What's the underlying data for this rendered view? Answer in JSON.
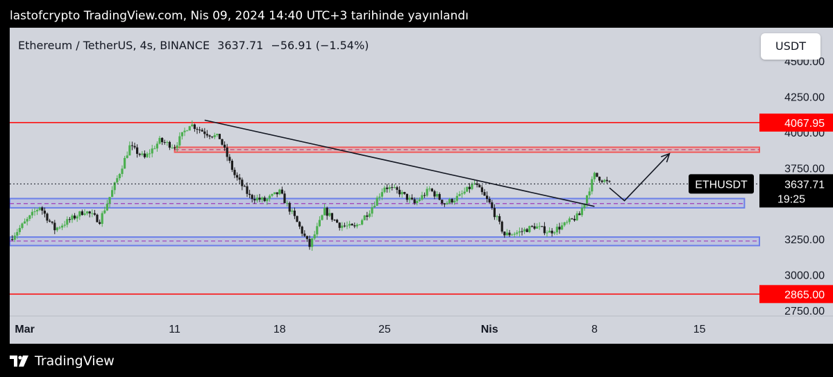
{
  "header": {
    "publish_line": "lastofcrypto TradingView.com, Nis 09, 2024 14:40 UTC+3 tarihinde yayınlandı"
  },
  "legend": {
    "symbol": "Ethereum / TetherUS, 4s, BINANCE",
    "price": "3637.71",
    "change": "−56.91 (−1.54%)"
  },
  "currency_button": "USDT",
  "footer": {
    "brand": "TradingView"
  },
  "colors": {
    "background": "#d1d4dc",
    "candle_up": "#4caf50",
    "candle_down": "#1c1c1c",
    "resistance_line": "#ff0000",
    "zone_blue": "#6b7fe8",
    "zone_red": "#f05a5a"
  },
  "chart_data": {
    "type": "candlestick",
    "x_axis": {
      "start": "2024-02-29",
      "end": "2024-04-19",
      "ticks": [
        {
          "date": "2024-03-01",
          "label": "Mar"
        },
        {
          "date": "2024-03-11",
          "label": "11"
        },
        {
          "date": "2024-03-18",
          "label": "18"
        },
        {
          "date": "2024-03-25",
          "label": "25"
        },
        {
          "date": "2024-04-01",
          "label": "Nis"
        },
        {
          "date": "2024-04-08",
          "label": "8"
        },
        {
          "date": "2024-04-15",
          "label": "15"
        }
      ]
    },
    "y_axis": {
      "ylim": [
        2750,
        4500
      ],
      "ticks": [
        "4500.00",
        "4250.00",
        "4000.00",
        "3750.00",
        "3250.00",
        "3000.00",
        "2750.00"
      ],
      "tick_values": [
        4500,
        4250,
        4000,
        3750,
        3250,
        3000,
        2750
      ]
    },
    "last_price": {
      "value": 3637.71,
      "symbol_label": "ETHUSDT",
      "price_label": "3637.71",
      "countdown": "19:25"
    },
    "horizontal_levels": [
      {
        "value": 4067.95,
        "label": "4067.95"
      },
      {
        "value": 2865.0,
        "label": "2865.00"
      }
    ],
    "zones": [
      {
        "kind": "resistance",
        "from": "2024-03-11",
        "to": "2024-04-19",
        "low": 3860,
        "high": 3895,
        "mid": 3878
      },
      {
        "kind": "support",
        "from": "2024-02-29",
        "to": "2024-04-18",
        "low": 3470,
        "high": 3535,
        "mid": 3500
      },
      {
        "kind": "support",
        "from": "2024-02-29",
        "to": "2024-04-19",
        "low": 3205,
        "high": 3265,
        "mid": 3237
      }
    ],
    "trendline": {
      "from": {
        "date": "2024-03-13",
        "value": 4085
      },
      "to": {
        "date": "2024-04-08",
        "value": 3480
      }
    },
    "projection": [
      {
        "date": "2024-04-09",
        "value": 3610
      },
      {
        "date": "2024-04-10",
        "value": 3520
      },
      {
        "date": "2024-04-13",
        "value": 3850
      }
    ],
    "pivots": [
      {
        "date": "2024-02-29",
        "value": 3250
      },
      {
        "date": "2024-03-02",
        "value": 3480
      },
      {
        "date": "2024-03-03",
        "value": 3320
      },
      {
        "date": "2024-03-05",
        "value": 3450
      },
      {
        "date": "2024-03-06",
        "value": 3380
      },
      {
        "date": "2024-03-07",
        "value": 3630
      },
      {
        "date": "2024-03-08",
        "value": 3900
      },
      {
        "date": "2024-03-09",
        "value": 3820
      },
      {
        "date": "2024-03-10",
        "value": 3940
      },
      {
        "date": "2024-03-11",
        "value": 3900
      },
      {
        "date": "2024-03-12",
        "value": 4060
      },
      {
        "date": "2024-03-13",
        "value": 4000
      },
      {
        "date": "2024-03-14",
        "value": 3960
      },
      {
        "date": "2024-03-15",
        "value": 3700
      },
      {
        "date": "2024-03-16",
        "value": 3550
      },
      {
        "date": "2024-03-17",
        "value": 3520
      },
      {
        "date": "2024-03-18",
        "value": 3580
      },
      {
        "date": "2024-03-19",
        "value": 3400
      },
      {
        "date": "2024-03-20",
        "value": 3200
      },
      {
        "date": "2024-03-21",
        "value": 3450
      },
      {
        "date": "2024-03-22",
        "value": 3350
      },
      {
        "date": "2024-03-23",
        "value": 3330
      },
      {
        "date": "2024-03-24",
        "value": 3450
      },
      {
        "date": "2024-03-25",
        "value": 3620
      },
      {
        "date": "2024-03-26",
        "value": 3580
      },
      {
        "date": "2024-03-27",
        "value": 3500
      },
      {
        "date": "2024-03-28",
        "value": 3600
      },
      {
        "date": "2024-03-29",
        "value": 3500
      },
      {
        "date": "2024-03-30",
        "value": 3550
      },
      {
        "date": "2024-03-31",
        "value": 3640
      },
      {
        "date": "2024-04-01",
        "value": 3500
      },
      {
        "date": "2024-04-02",
        "value": 3280
      },
      {
        "date": "2024-04-03",
        "value": 3300
      },
      {
        "date": "2024-04-04",
        "value": 3340
      },
      {
        "date": "2024-04-05",
        "value": 3300
      },
      {
        "date": "2024-04-06",
        "value": 3350
      },
      {
        "date": "2024-04-07",
        "value": 3420
      },
      {
        "date": "2024-04-08",
        "value": 3700
      },
      {
        "date": "2024-04-09",
        "value": 3637.71
      }
    ]
  }
}
